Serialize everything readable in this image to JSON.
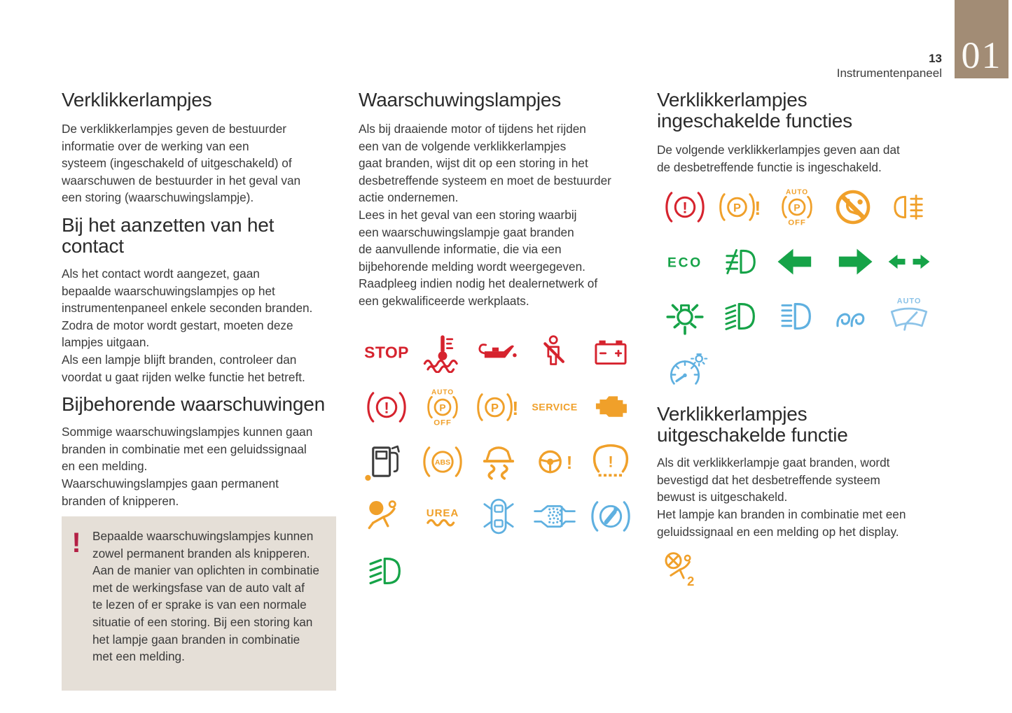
{
  "page": {
    "number": "13",
    "section": "Instrumentenpaneel",
    "chapter_tab": "01"
  },
  "colors": {
    "red": "#d6232e",
    "orange": "#f0a02a",
    "green": "#16a348",
    "blue": "#5fb0e0",
    "light_blue": "#8cc3e8",
    "dark": "#3e3e3e",
    "tab": "#a28c75",
    "box_bg": "#e5dfd7",
    "warn_mark": "#b42045"
  },
  "left": {
    "title": "Verklikkerlampjes",
    "intro": "De verklikkerlampjes geven de bestuurder\ninformatie over de werking van een\nsysteem (ingeschakeld of uitgeschakeld) of\nwaarschuwen de bestuurder in het geval van\neen storing (waarschuwingslampje).",
    "sections": [
      {
        "heading": "Bij het aanzetten van het contact",
        "body": "Als het contact wordt aangezet, gaan\nbepaalde waarschuwingslampjes op het\ninstrumentenpaneel enkele seconden branden.\nZodra de motor wordt gestart, moeten deze\nlampjes uitgaan.\nAls een lampje blijft branden, controleer dan\nvoordat u gaat rijden welke functie het betreft."
      },
      {
        "heading": "Bijbehorende waarschuwingen",
        "body": "Sommige waarschuwingslampjes kunnen gaan\nbranden in combinatie met een geluidssignaal\nen een melding.\nWaarschuwingslampjes gaan permanent\nbranden of knipperen."
      }
    ],
    "warning_box": {
      "mark": "!",
      "text": "Bepaalde waarschuwingslampjes kunnen\nzowel permanent branden als knipperen.\nAan de manier van oplichten in combinatie\nmet de werkingsfase van de auto valt af\nte lezen of er sprake is van een normale\nsituatie of een storing. Bij een storing kan\nhet lampje gaan branden in combinatie\nmet een melding."
    }
  },
  "middle": {
    "title": "Waarschuwingslampjes",
    "intro": "Als bij draaiende motor of tijdens het rijden\neen van de volgende verklikkerlampjes\ngaat branden, wijst dit op een storing in het\ndesbetreffende systeem en moet de bestuurder\nactie ondernemen.\nLees in het geval van een storing waarbij\neen waarschuwingslampje gaat branden\nde aanvullende informatie, die via een\nbijbehorende melding wordt weergegeven.\nRaadpleeg indien nodig het dealernetwerk of\neen gekwalificeerde werkplaats.",
    "icon_rows": [
      [
        {
          "icon": "word",
          "name": "stop-warning",
          "label": "STOP",
          "color": "#d6232e",
          "size": 25,
          "weight": 700
        },
        {
          "icon": "coolant",
          "name": "coolant-temperature-warning",
          "color": "#d6232e"
        },
        {
          "icon": "oil",
          "name": "engine-oil-pressure-warning",
          "color": "#d6232e"
        },
        {
          "icon": "seatbelt",
          "name": "seatbelt-warning",
          "color": "#d6232e"
        },
        {
          "icon": "battery",
          "name": "battery-charge-warning",
          "color": "#d6232e"
        }
      ],
      [
        {
          "icon": "brake",
          "name": "braking-system-warning",
          "color": "#d6232e",
          "sym": "!"
        },
        {
          "icon": "autopoff",
          "name": "auto-parking-brake-off-warning",
          "color": "#f0a02a",
          "top": "AUTO",
          "bottom": "OFF"
        },
        {
          "icon": "pfault",
          "name": "parking-brake-fault-warning",
          "color": "#f0a02a"
        },
        {
          "icon": "word",
          "name": "service-warning",
          "label": "SERVICE",
          "color": "#f0a02a",
          "size": 15.5,
          "weight": 700
        },
        {
          "icon": "engine",
          "name": "engine-diagnostics-warning",
          "color": "#f0a02a"
        }
      ],
      [
        {
          "icon": "fuel",
          "name": "low-fuel-warning",
          "color": "#3e3e3e",
          "color2": "#f0a02a"
        },
        {
          "icon": "abs",
          "name": "abs-warning",
          "label": "ABS",
          "color": "#f0a02a"
        },
        {
          "icon": "esp",
          "name": "esp-asr-warning",
          "color": "#f0a02a"
        },
        {
          "icon": "steering",
          "name": "power-steering-warning",
          "color": "#f0a02a"
        },
        {
          "icon": "tire",
          "name": "tire-pressure-warning",
          "color": "#f0a02a"
        }
      ],
      [
        {
          "icon": "airbag",
          "name": "airbag-warning",
          "color": "#f0a02a"
        },
        {
          "icon": "urea",
          "name": "urea-level-warning",
          "label": "UREA",
          "color": "#f0a02a"
        },
        {
          "icon": "doors",
          "name": "doors-open-warning",
          "color": "#5fb0e0"
        },
        {
          "icon": "dpf",
          "name": "particulate-filter-warning",
          "color": "#5fb0e0"
        },
        {
          "icon": "pedal",
          "name": "press-brake-pedal-warning",
          "color": "#5fb0e0"
        }
      ],
      [
        {
          "icon": "fogslant",
          "name": "front-fog-lights",
          "color": "#16a348"
        }
      ]
    ]
  },
  "right": {
    "title_on": "Verklikkerlampjes\ningeschakelde functies",
    "intro_on": "De volgende verklikkerlampjes geven aan dat\nde desbetreffende functie is ingeschakeld.",
    "icon_rows_on": [
      [
        {
          "icon": "brake",
          "name": "parking-brake-indicator",
          "color": "#d6232e",
          "sym": "!"
        },
        {
          "icon": "pfault",
          "name": "parking-brake-fault-indicator",
          "color": "#f0a02a"
        },
        {
          "icon": "autopoff",
          "name": "auto-parking-brake-off-indicator",
          "color": "#f0a02a",
          "top": "AUTO",
          "bottom": "OFF"
        },
        {
          "icon": "airbagoff-circle",
          "name": "passenger-airbag-deactivated-indicator",
          "color": "#f0a02a"
        },
        {
          "icon": "sidelights",
          "name": "sidelights-indicator",
          "color": "#f0a02a"
        }
      ],
      [
        {
          "icon": "word",
          "name": "eco-mode-indicator",
          "label": "ECO",
          "color": "#16a348",
          "size": 21,
          "weight": 700,
          "ls": 3
        },
        {
          "icon": "fogcross",
          "name": "fog-lights-indicator",
          "color": "#16a348"
        },
        {
          "icon": "arrowleft",
          "name": "left-turn-indicator",
          "color": "#16a348"
        },
        {
          "icon": "arrowright",
          "name": "right-turn-indicator",
          "color": "#16a348"
        },
        {
          "icon": "dblarrow",
          "name": "direction-indicators",
          "color": "#16a348"
        }
      ],
      [
        {
          "icon": "bulb",
          "name": "parking-lights-indicator",
          "color": "#16a348"
        },
        {
          "icon": "dipped",
          "name": "dipped-beam-indicator",
          "color": "#16a348"
        },
        {
          "icon": "highbeam",
          "name": "high-beam-indicator",
          "color": "#5fb0e0"
        },
        {
          "icon": "glow",
          "name": "glow-plugs-indicator",
          "color": "#5fb0e0"
        },
        {
          "icon": "wiper",
          "name": "auto-wipers-indicator",
          "color": "#8cc3e8",
          "top": "AUTO"
        }
      ],
      [
        {
          "icon": "speedo",
          "name": "speed-limit-indicator",
          "color": "#5fb0e0"
        }
      ]
    ],
    "title_off": "Verklikkerlampjes\nuitgeschakelde functie",
    "body_off": "Als dit verklikkerlampje gaat branden, wordt\nbevestigd dat het desbetreffende systeem\nbewust is uitgeschakeld.\nHet lampje kan branden in combinatie met een\ngeluidssignaal en een melding op het display.",
    "icon_rows_off": [
      [
        {
          "icon": "airbagoff2",
          "name": "passenger-airbag-off-indicator",
          "color": "#f0a02a",
          "label": "2"
        }
      ]
    ]
  }
}
